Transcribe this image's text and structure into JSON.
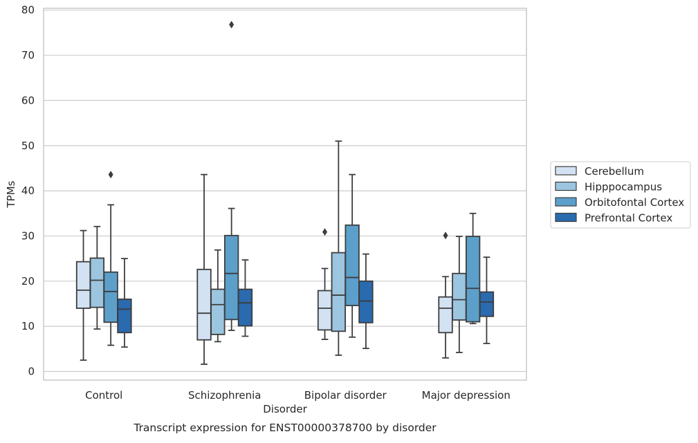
{
  "chart_data": {
    "type": "boxplot",
    "xlabel": "Disorder",
    "ylabel": "TPMs",
    "caption": "Transcript expression for ENST00000378700 by disorder",
    "ylim": [
      -2,
      80.5
    ],
    "yticks": [
      0,
      10,
      20,
      30,
      40,
      50,
      60,
      70,
      80
    ],
    "grid": "horizontal",
    "legend_position": "right",
    "categories": [
      "Control",
      "Schizophrenia",
      "Bipolar disorder",
      "Major depression"
    ],
    "series": [
      {
        "name": "Cerebellum",
        "color": "#d2e2f2",
        "boxes": [
          {
            "whislo": 2.5,
            "q1": 14.0,
            "med": 18.0,
            "q3": 24.3,
            "whishi": 31.2,
            "fliers": []
          },
          {
            "whislo": 1.6,
            "q1": 7.0,
            "med": 12.9,
            "q3": 22.6,
            "whishi": 43.6,
            "fliers": []
          },
          {
            "whislo": 7.1,
            "q1": 9.2,
            "med": 14.0,
            "q3": 17.9,
            "whishi": 22.8,
            "fliers": [
              30.9
            ]
          },
          {
            "whislo": 3.0,
            "q1": 8.6,
            "med": 14.0,
            "q3": 16.5,
            "whishi": 21.0,
            "fliers": [
              30.1
            ]
          }
        ]
      },
      {
        "name": "Hipppocampus",
        "color": "#9cc5df",
        "boxes": [
          {
            "whislo": 9.4,
            "q1": 14.2,
            "med": 20.2,
            "q3": 25.1,
            "whishi": 32.1,
            "fliers": []
          },
          {
            "whislo": 6.6,
            "q1": 8.2,
            "med": 14.8,
            "q3": 18.2,
            "whishi": 26.9,
            "fliers": []
          },
          {
            "whislo": 3.6,
            "q1": 8.9,
            "med": 16.9,
            "q3": 26.3,
            "whishi": 51.0,
            "fliers": []
          },
          {
            "whislo": 4.2,
            "q1": 11.4,
            "med": 15.9,
            "q3": 21.7,
            "whishi": 29.9,
            "fliers": []
          }
        ]
      },
      {
        "name": "Orbitofontal Cortex",
        "color": "#5c9fcb",
        "boxes": [
          {
            "whislo": 5.8,
            "q1": 10.9,
            "med": 17.7,
            "q3": 22.0,
            "whishi": 36.9,
            "fliers": [
              43.6
            ]
          },
          {
            "whislo": 9.1,
            "q1": 11.5,
            "med": 21.7,
            "q3": 30.1,
            "whishi": 36.1,
            "fliers": [
              76.8
            ]
          },
          {
            "whislo": 7.6,
            "q1": 14.6,
            "med": 20.8,
            "q3": 32.4,
            "whishi": 43.6,
            "fliers": []
          },
          {
            "whislo": 10.6,
            "q1": 11.0,
            "med": 18.4,
            "q3": 29.9,
            "whishi": 35.0,
            "fliers": []
          }
        ]
      },
      {
        "name": "Prefrontal Cortex",
        "color": "#2a6aae",
        "boxes": [
          {
            "whislo": 5.4,
            "q1": 8.6,
            "med": 13.8,
            "q3": 16.0,
            "whishi": 25.0,
            "fliers": []
          },
          {
            "whislo": 7.8,
            "q1": 10.1,
            "med": 15.2,
            "q3": 18.2,
            "whishi": 24.7,
            "fliers": []
          },
          {
            "whislo": 5.1,
            "q1": 10.8,
            "med": 15.6,
            "q3": 20.0,
            "whishi": 26.0,
            "fliers": []
          },
          {
            "whislo": 6.2,
            "q1": 12.2,
            "med": 15.4,
            "q3": 17.6,
            "whishi": 25.3,
            "fliers": []
          }
        ]
      }
    ]
  }
}
